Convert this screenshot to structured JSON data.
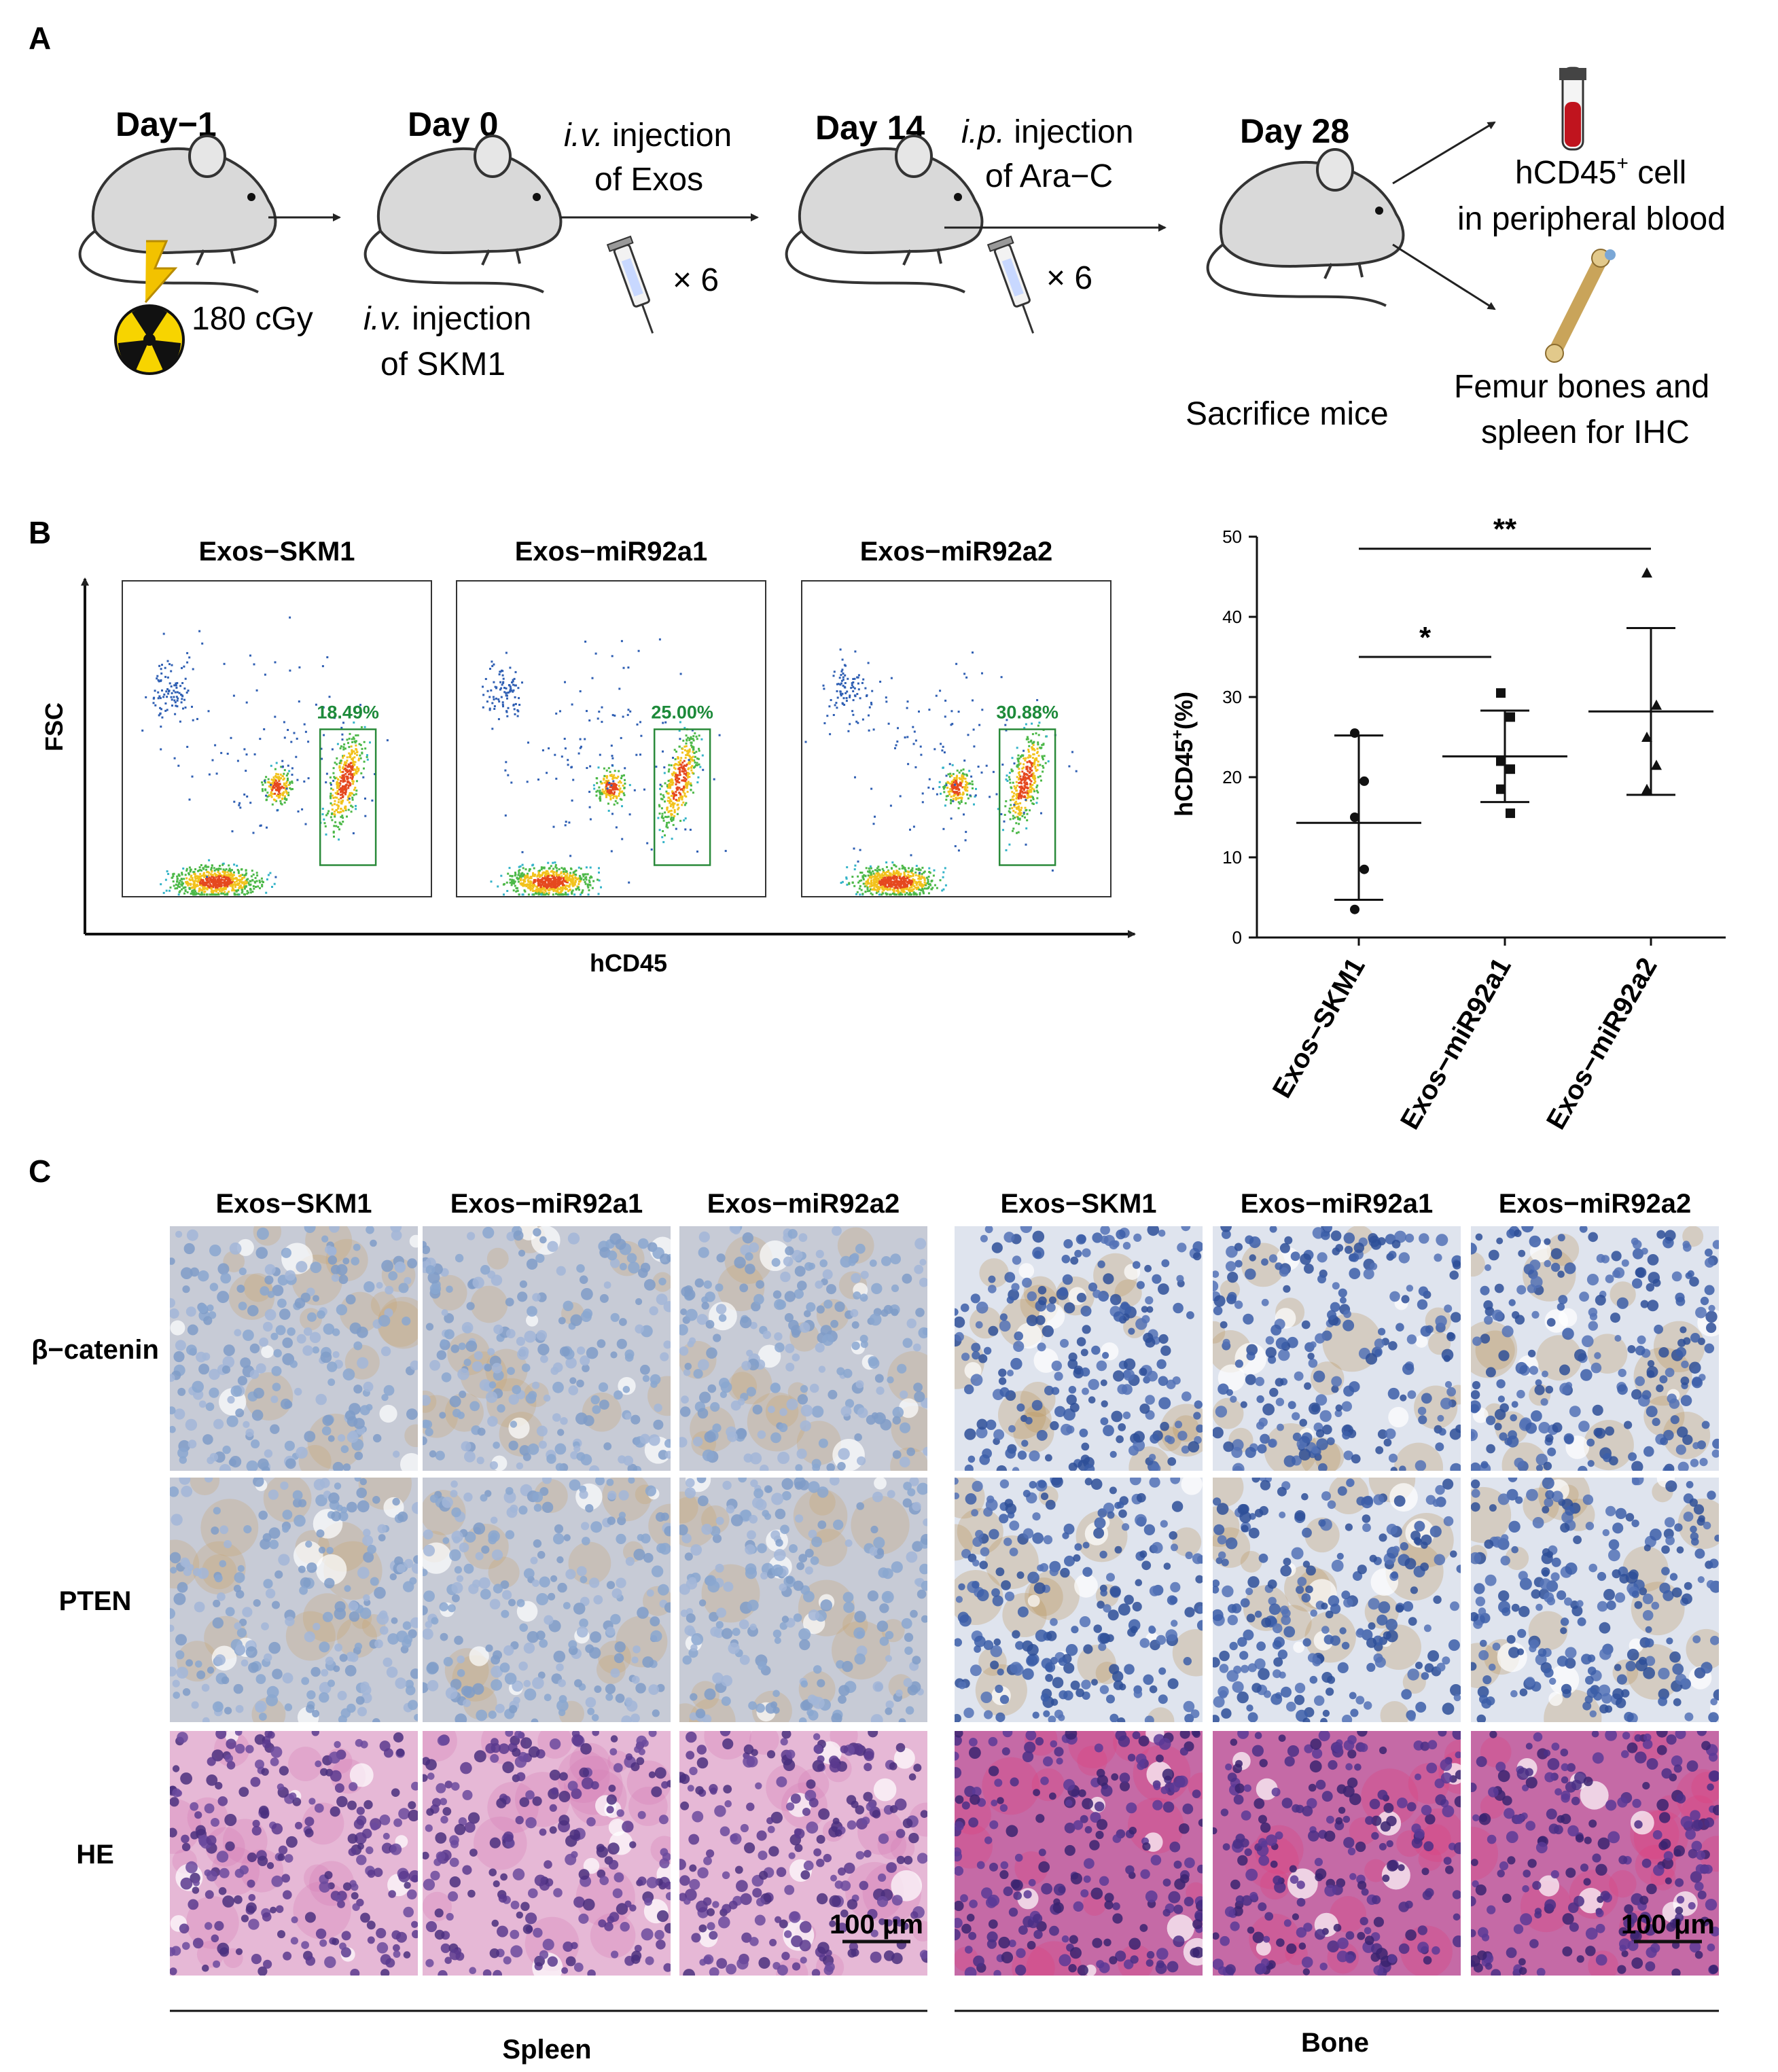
{
  "panels": {
    "a": "A",
    "b": "B",
    "c": "C"
  },
  "panel_a": {
    "day_minus1": "Day−1",
    "dose": "180 cGy",
    "day0": "Day 0",
    "iv_skm1_1": "i.v.",
    "iv_skm1_2": " injection",
    "iv_skm1_3": "of SKM1",
    "iv_exos_1": "i.v.",
    "iv_exos_2": " injection",
    "iv_exos_3": "of Exos",
    "times1": "× 6",
    "day14": "Day 14",
    "ip_arac_1": "i.p.",
    "ip_arac_2": " injection",
    "ip_arac_3": "of Ara−C",
    "times2": "× 6",
    "day28": "Day 28",
    "sacrifice": "Sacrifice mice",
    "hcd45_cell": "hCD45",
    "hcd45_sup": "+",
    "hcd45_cell_2": " cell",
    "peripheral": "in peripheral blood",
    "femur": "Femur bones and",
    "spleen_ihc": "spleen for  IHC"
  },
  "panel_b_flow": {
    "y_axis": "FSC",
    "x_axis": "hCD45",
    "plots": [
      {
        "title": "Exos−SKM1",
        "gate_pct": "18.49%"
      },
      {
        "title": "Exos−miR92a1",
        "gate_pct": "25.00%"
      },
      {
        "title": "Exos−miR92a2",
        "gate_pct": "30.88%"
      }
    ]
  },
  "chart_data": {
    "type": "scatter",
    "ylabel_main": "hCD45",
    "ylabel_sup": "+",
    "ylabel_tail": "(%)",
    "ylim": [
      0,
      50
    ],
    "yticks": [
      "0",
      "10",
      "20",
      "30",
      "40",
      "50"
    ],
    "categories": [
      "Exos−SKM1",
      "Exos−miR92a1",
      "Exos−miR92a2"
    ],
    "series": [
      {
        "points": [
          25.5,
          19.5,
          15.0,
          8.5,
          3.5
        ],
        "mean": 14.3,
        "sd_low": 4.7,
        "sd_high": 25.2,
        "marker": "circle"
      },
      {
        "points": [
          30.5,
          27.5,
          22.0,
          21.0,
          18.5,
          15.5
        ],
        "mean": 22.6,
        "sd_low": 16.9,
        "sd_high": 28.3,
        "marker": "square"
      },
      {
        "points": [
          45.5,
          29.0,
          25.0,
          21.5,
          18.5
        ],
        "mean": 28.2,
        "sd_low": 17.8,
        "sd_high": 38.6,
        "marker": "triangle"
      }
    ],
    "significance": [
      {
        "from": 0,
        "to": 1,
        "label": "*"
      },
      {
        "from": 0,
        "to": 2,
        "label": "**"
      }
    ],
    "grid": false
  },
  "panel_c": {
    "columns": [
      "Exos−SKM1",
      "Exos−miR92a1",
      "Exos−miR92a2",
      "Exos−SKM1",
      "Exos−miR92a1",
      "Exos−miR92a2"
    ],
    "rows": [
      "β−catenin",
      "PTEN",
      "HE"
    ],
    "scale": "100 μm",
    "group_left": "Spleen",
    "group_right": "Bone"
  }
}
